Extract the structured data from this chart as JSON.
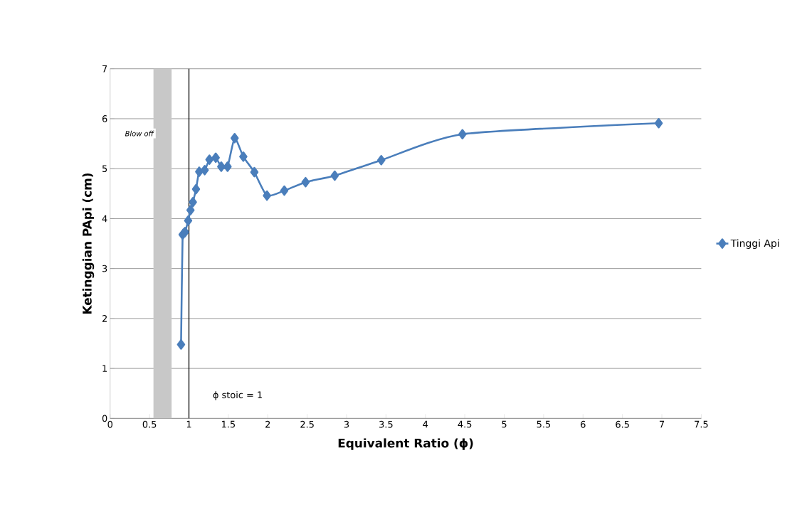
{
  "chart_data": {
    "type": "line",
    "xlabel": "Equivalent Ratio (ϕ)",
    "ylabel": "Ketinggian PApi (cm)",
    "x": [
      0.9,
      0.92,
      0.95,
      0.99,
      1.02,
      1.05,
      1.09,
      1.13,
      1.2,
      1.26,
      1.34,
      1.41,
      1.49,
      1.58,
      1.69,
      1.83,
      1.99,
      2.21,
      2.48,
      2.85,
      3.44,
      4.47,
      6.96
    ],
    "series": [
      {
        "name": "Tinggi Api",
        "color": "#4a7ebb",
        "values": [
          1.48,
          3.68,
          3.73,
          3.96,
          4.17,
          4.33,
          4.59,
          4.94,
          4.97,
          5.18,
          5.22,
          5.04,
          5.04,
          5.61,
          5.24,
          4.93,
          4.46,
          4.56,
          4.73,
          4.86,
          5.17,
          5.69,
          5.91
        ]
      }
    ],
    "xlim": [
      0,
      7.5
    ],
    "xticks": [
      0,
      {
        "value": 0.5,
        "label": "0.5"
      },
      1,
      {
        "value": 1.5,
        "label": "1.5"
      },
      2,
      {
        "value": 2.5,
        "label": "2.5"
      },
      3,
      {
        "value": 3.5,
        "label": "3.5"
      },
      4,
      {
        "value": 4.5,
        "label": "4.5"
      },
      5,
      {
        "value": 5.5,
        "label": "5.5"
      },
      6,
      {
        "value": 6.5,
        "label": "6.5"
      },
      7,
      {
        "value": 7.5,
        "label": "7.5"
      }
    ],
    "ylim": [
      0,
      7
    ],
    "yticks": [
      0,
      1,
      2,
      3,
      4,
      5,
      6,
      7
    ],
    "ref_lines": [
      {
        "axis": "x",
        "value": 1,
        "label": "ϕ stoic = 1",
        "color": "#000000"
      }
    ],
    "bands": [
      {
        "axis": "x",
        "from": 0.55,
        "to": 0.78,
        "label": "Blow off",
        "color": "#c8c8c8"
      }
    ],
    "grid": "y",
    "legend": "right",
    "marker": "diamond",
    "line_style": "solid"
  }
}
